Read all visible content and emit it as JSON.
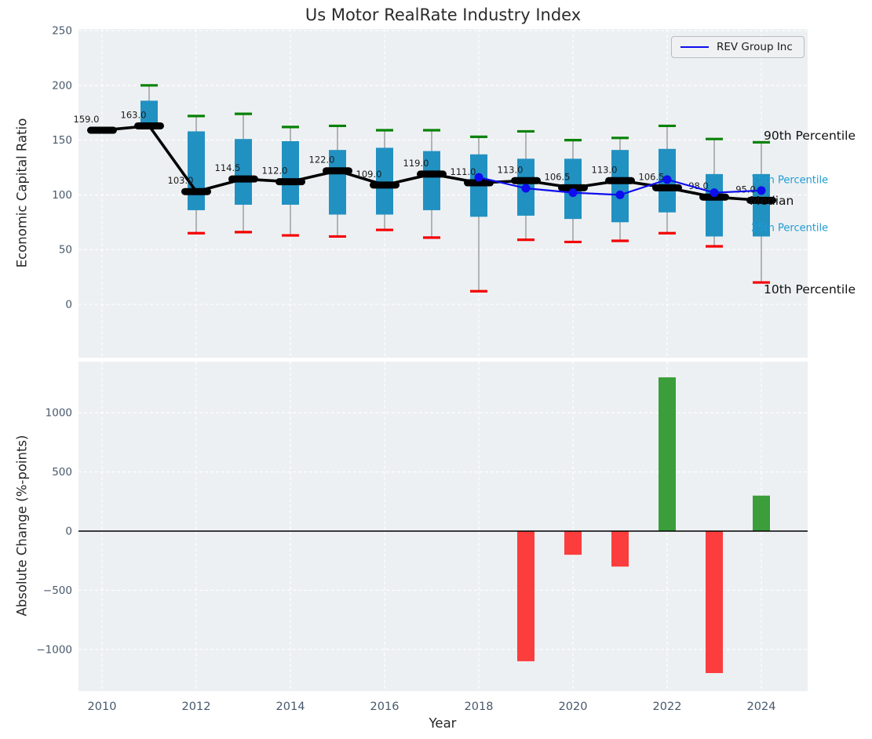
{
  "title": "Us Motor RealRate Industry Index",
  "legend": {
    "label": "REV Group Inc"
  },
  "annotations": {
    "p90": "90th Percentile",
    "p75": "75th Percentile",
    "median": "Median",
    "p25": "25th Percentile",
    "p10": "10th Percentile"
  },
  "top_chart": {
    "ylabel": "Economic Capital Ratio",
    "yticks": [
      0,
      50,
      100,
      150,
      200,
      250
    ]
  },
  "bottom_chart": {
    "ylabel": "Absolute Change (%-points)",
    "xlabel": "Year",
    "yticks": [
      1000,
      500,
      0,
      -500,
      -1000
    ],
    "xticks": [
      2010,
      2012,
      2014,
      2016,
      2018,
      2020,
      2022,
      2024
    ]
  },
  "colors": {
    "plot_bg": "#edf0f2",
    "grid": "#ffffff",
    "box": "#2191c2",
    "cap_high": "#078207",
    "cap_low": "#f40000",
    "whisker": "#8a8a8a",
    "median_line": "#000000",
    "company_line": "#0d0dee",
    "bar_positive": "#3b9e3b",
    "bar_negative": "#fb3d3d",
    "tick_label": "#47586b",
    "median_label": "#1a1a1a"
  },
  "chart_data": [
    {
      "type": "line",
      "subtype": "percentile-boxplot",
      "title": "Us Motor RealRate Industry Index",
      "ylabel": "Economic Capital Ratio",
      "ylim": [
        -48,
        251
      ],
      "grid": true,
      "legend_position": "upper right",
      "x": [
        2010,
        2011,
        2012,
        2013,
        2014,
        2015,
        2016,
        2017,
        2018,
        2019,
        2020,
        2021,
        2022,
        2023,
        2024
      ],
      "series": [
        {
          "name": "Median",
          "values": [
            159.0,
            163.0,
            103.0,
            114.5,
            112.0,
            122.0,
            109.0,
            119.0,
            111.0,
            113.0,
            106.5,
            113.0,
            106.5,
            98.0,
            95.0
          ]
        },
        {
          "name": "75th Percentile",
          "values": [
            159,
            186,
            158,
            151,
            149,
            141,
            143,
            140,
            137,
            133,
            133,
            141,
            142,
            119,
            119
          ]
        },
        {
          "name": "25th Percentile",
          "values": [
            159,
            164,
            86,
            91,
            91,
            82,
            82,
            86,
            80,
            81,
            78,
            75,
            84,
            62,
            62
          ]
        },
        {
          "name": "90th Percentile",
          "values": [
            161,
            200,
            172,
            174,
            162,
            163,
            159,
            159,
            153,
            158,
            150,
            152,
            163,
            151,
            148
          ]
        },
        {
          "name": "10th Percentile",
          "values": [
            159,
            163,
            65,
            66,
            63,
            62,
            68,
            61,
            12,
            59,
            57,
            58,
            65,
            53,
            20
          ]
        },
        {
          "name": "REV Group Inc",
          "values": [
            null,
            null,
            null,
            null,
            null,
            null,
            null,
            null,
            116,
            106,
            102,
            100,
            114,
            102,
            104
          ]
        }
      ],
      "median_labels": [
        "159.0",
        "163.0",
        "103.0",
        "114.5",
        "112.0",
        "122.0",
        "109.0",
        "119.0",
        "111.0",
        "113.0",
        "106.5",
        "113.0",
        "106.5",
        "98.0",
        "95.0"
      ]
    },
    {
      "type": "bar",
      "ylabel": "Absolute Change (%-points)",
      "xlabel": "Year",
      "ylim": [
        -1346,
        1439
      ],
      "grid": true,
      "x": [
        2010,
        2011,
        2012,
        2013,
        2014,
        2015,
        2016,
        2017,
        2018,
        2019,
        2020,
        2021,
        2022,
        2023,
        2024
      ],
      "values": [
        null,
        null,
        null,
        null,
        null,
        null,
        null,
        null,
        null,
        -1100,
        -200,
        -300,
        1300,
        -1200,
        300
      ]
    }
  ]
}
